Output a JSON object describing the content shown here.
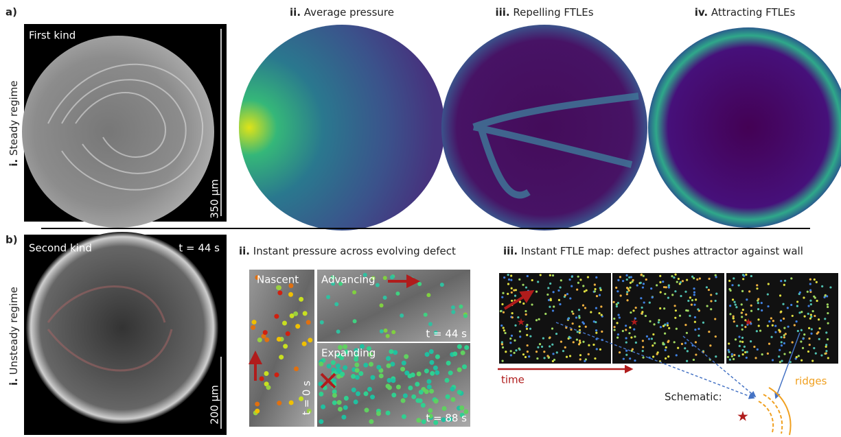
{
  "panel_a": {
    "label": "a)",
    "row_label": {
      "number": "i.",
      "text": "Steady regime"
    },
    "image_label": "First kind",
    "scale_bar": "350 µm",
    "panels": [
      {
        "number": "ii.",
        "title": "Average pressure"
      },
      {
        "number": "iii.",
        "title": "Repelling FTLEs"
      },
      {
        "number": "iv.",
        "title": "Attracting FTLEs"
      }
    ]
  },
  "panel_b": {
    "label": "b)",
    "row_label": {
      "number": "i.",
      "text": "Unsteady regime"
    },
    "image_label": "Second kind",
    "time_label": "t = 44 s",
    "scale_bar": "200 µm",
    "pressure": {
      "number": "ii.",
      "title": "Instant pressure across evolving defect",
      "nascent": "Nascent",
      "nascent_time": "t = 0 s",
      "advancing": "Advancing",
      "advancing_time": "t = 44 s",
      "expanding": "Expanding",
      "expanding_time": "t = 88 s"
    },
    "ftle": {
      "number": "iii.",
      "title": "Instant FTLE map: defect pushes attractor against wall",
      "time": "time",
      "schematic": "Schematic:",
      "ridges": "ridges"
    }
  }
}
